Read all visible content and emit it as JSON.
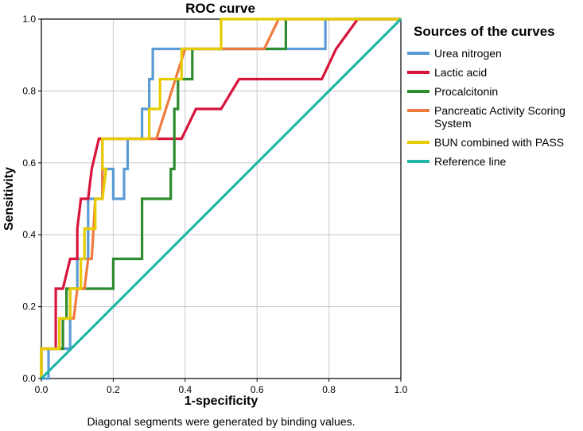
{
  "chart_data": {
    "type": "line",
    "title": "ROC curve",
    "xlabel": "1-specificity",
    "ylabel": "Sensitivity",
    "xlim": [
      0,
      1
    ],
    "ylim": [
      0,
      1
    ],
    "xticks": [
      "0.0",
      "0.2",
      "0.4",
      "0.6",
      "0.8",
      "1.0"
    ],
    "yticks": [
      "0.0",
      "0.2",
      "0.4",
      "0.6",
      "0.8",
      "1.0"
    ],
    "grid": true,
    "footnote": "Diagonal segments were generated by binding values.",
    "legend_title": "Sources of the curves",
    "series": [
      {
        "name": "Urea nitrogen",
        "legend_lines": [
          "Urea nitrogen"
        ],
        "color": "#5b9bd5",
        "points": [
          [
            0,
            0
          ],
          [
            0.02,
            0
          ],
          [
            0.02,
            0.083
          ],
          [
            0.08,
            0.083
          ],
          [
            0.08,
            0.25
          ],
          [
            0.1,
            0.25
          ],
          [
            0.1,
            0.333
          ],
          [
            0.13,
            0.333
          ],
          [
            0.13,
            0.5
          ],
          [
            0.17,
            0.5
          ],
          [
            0.17,
            0.583
          ],
          [
            0.2,
            0.583
          ],
          [
            0.2,
            0.5
          ],
          [
            0.23,
            0.5
          ],
          [
            0.23,
            0.583
          ],
          [
            0.24,
            0.583
          ],
          [
            0.24,
            0.667
          ],
          [
            0.28,
            0.667
          ],
          [
            0.28,
            0.75
          ],
          [
            0.3,
            0.75
          ],
          [
            0.3,
            0.833
          ],
          [
            0.31,
            0.833
          ],
          [
            0.31,
            0.917
          ],
          [
            0.79,
            0.917
          ],
          [
            0.79,
            1
          ],
          [
            1,
            1
          ]
        ]
      },
      {
        "name": "Lactic acid",
        "legend_lines": [
          "Lactic acid"
        ],
        "color": "#d7143c",
        "points": [
          [
            0,
            0
          ],
          [
            0,
            0.083
          ],
          [
            0.04,
            0.083
          ],
          [
            0.04,
            0.25
          ],
          [
            0.06,
            0.25
          ],
          [
            0.08,
            0.333
          ],
          [
            0.1,
            0.333
          ],
          [
            0.1,
            0.417
          ],
          [
            0.11,
            0.5
          ],
          [
            0.13,
            0.5
          ],
          [
            0.14,
            0.583
          ],
          [
            0.16,
            0.667
          ],
          [
            0.33,
            0.667
          ],
          [
            0.39,
            0.667
          ],
          [
            0.43,
            0.75
          ],
          [
            0.5,
            0.75
          ],
          [
            0.55,
            0.833
          ],
          [
            0.78,
            0.833
          ],
          [
            0.82,
            0.917
          ],
          [
            0.88,
            1
          ],
          [
            1,
            1
          ]
        ]
      },
      {
        "name": "Procalcitonin",
        "legend_lines": [
          "Procalcitonin"
        ],
        "color": "#2e8b2e",
        "points": [
          [
            0,
            0
          ],
          [
            0,
            0.083
          ],
          [
            0.06,
            0.083
          ],
          [
            0.06,
            0.167
          ],
          [
            0.07,
            0.167
          ],
          [
            0.07,
            0.25
          ],
          [
            0.2,
            0.25
          ],
          [
            0.2,
            0.333
          ],
          [
            0.28,
            0.333
          ],
          [
            0.28,
            0.5
          ],
          [
            0.36,
            0.5
          ],
          [
            0.36,
            0.583
          ],
          [
            0.37,
            0.583
          ],
          [
            0.37,
            0.75
          ],
          [
            0.38,
            0.75
          ],
          [
            0.38,
            0.833
          ],
          [
            0.42,
            0.833
          ],
          [
            0.42,
            0.917
          ],
          [
            0.6,
            0.917
          ],
          [
            0.6,
            0.917
          ],
          [
            0.68,
            0.917
          ],
          [
            0.68,
            1
          ],
          [
            1,
            1
          ]
        ]
      },
      {
        "name": "Pancreatic Activity Scoring System",
        "legend_lines": [
          "Pancreatic Activity Scoring",
          "System"
        ],
        "color": "#f07b3f",
        "points": [
          [
            0,
            0
          ],
          [
            0,
            0.083
          ],
          [
            0.05,
            0.083
          ],
          [
            0.05,
            0.167
          ],
          [
            0.09,
            0.167
          ],
          [
            0.1,
            0.25
          ],
          [
            0.12,
            0.25
          ],
          [
            0.13,
            0.333
          ],
          [
            0.14,
            0.333
          ],
          [
            0.15,
            0.5
          ],
          [
            0.17,
            0.5
          ],
          [
            0.17,
            0.667
          ],
          [
            0.3,
            0.667
          ],
          [
            0.32,
            0.667
          ],
          [
            0.4,
            0.917
          ],
          [
            0.62,
            0.917
          ],
          [
            0.66,
            1
          ],
          [
            1,
            1
          ]
        ]
      },
      {
        "name": "BUN combined with PASS",
        "legend_lines": [
          "BUN combined with PASS"
        ],
        "color": "#e6cc00",
        "points": [
          [
            0,
            0
          ],
          [
            0,
            0.083
          ],
          [
            0.05,
            0.083
          ],
          [
            0.05,
            0.167
          ],
          [
            0.08,
            0.167
          ],
          [
            0.08,
            0.25
          ],
          [
            0.11,
            0.25
          ],
          [
            0.11,
            0.333
          ],
          [
            0.12,
            0.333
          ],
          [
            0.12,
            0.417
          ],
          [
            0.15,
            0.417
          ],
          [
            0.15,
            0.5
          ],
          [
            0.17,
            0.5
          ],
          [
            0.18,
            0.583
          ],
          [
            0.17,
            0.583
          ],
          [
            0.17,
            0.667
          ],
          [
            0.3,
            0.667
          ],
          [
            0.3,
            0.75
          ],
          [
            0.33,
            0.75
          ],
          [
            0.33,
            0.833
          ],
          [
            0.39,
            0.833
          ],
          [
            0.39,
            0.917
          ],
          [
            0.5,
            0.917
          ],
          [
            0.5,
            1
          ],
          [
            1,
            1
          ]
        ]
      },
      {
        "name": "Reference line",
        "legend_lines": [
          "Reference line"
        ],
        "color": "#1fb5a8",
        "points": [
          [
            0,
            0
          ],
          [
            1,
            1
          ]
        ]
      }
    ]
  }
}
